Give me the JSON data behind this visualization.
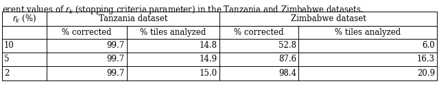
{
  "caption": "erent values of $r_k$ (stopping criteria parameter) in the Tanzania and Zimbabwe datasets.",
  "col0_header": "$r_k$ (%)",
  "tanzania_header": "Tanzania dataset",
  "zimbabwe_header": "Zimbabwe dataset",
  "sub_col1": "% corrected",
  "sub_col2": "% tiles analyzed",
  "sub_col3": "% corrected",
  "sub_col4": "% tiles analyzed",
  "rows": [
    {
      "rk": "10",
      "tz_corr": "99.7",
      "tz_tiles": "14.8",
      "zw_corr": "52.8",
      "zw_tiles": "6.0"
    },
    {
      "rk": "5",
      "tz_corr": "99.7",
      "tz_tiles": "14.9",
      "zw_corr": "87.6",
      "zw_tiles": "16.3"
    },
    {
      "rk": "2",
      "tz_corr": "99.7",
      "tz_tiles": "15.0",
      "zw_corr": "98.4",
      "zw_tiles": "20.9"
    }
  ],
  "figsize": [
    6.4,
    1.29
  ],
  "dpi": 100,
  "caption_fontsize": 8.5,
  "table_fontsize": 8.5,
  "lw": 0.7
}
